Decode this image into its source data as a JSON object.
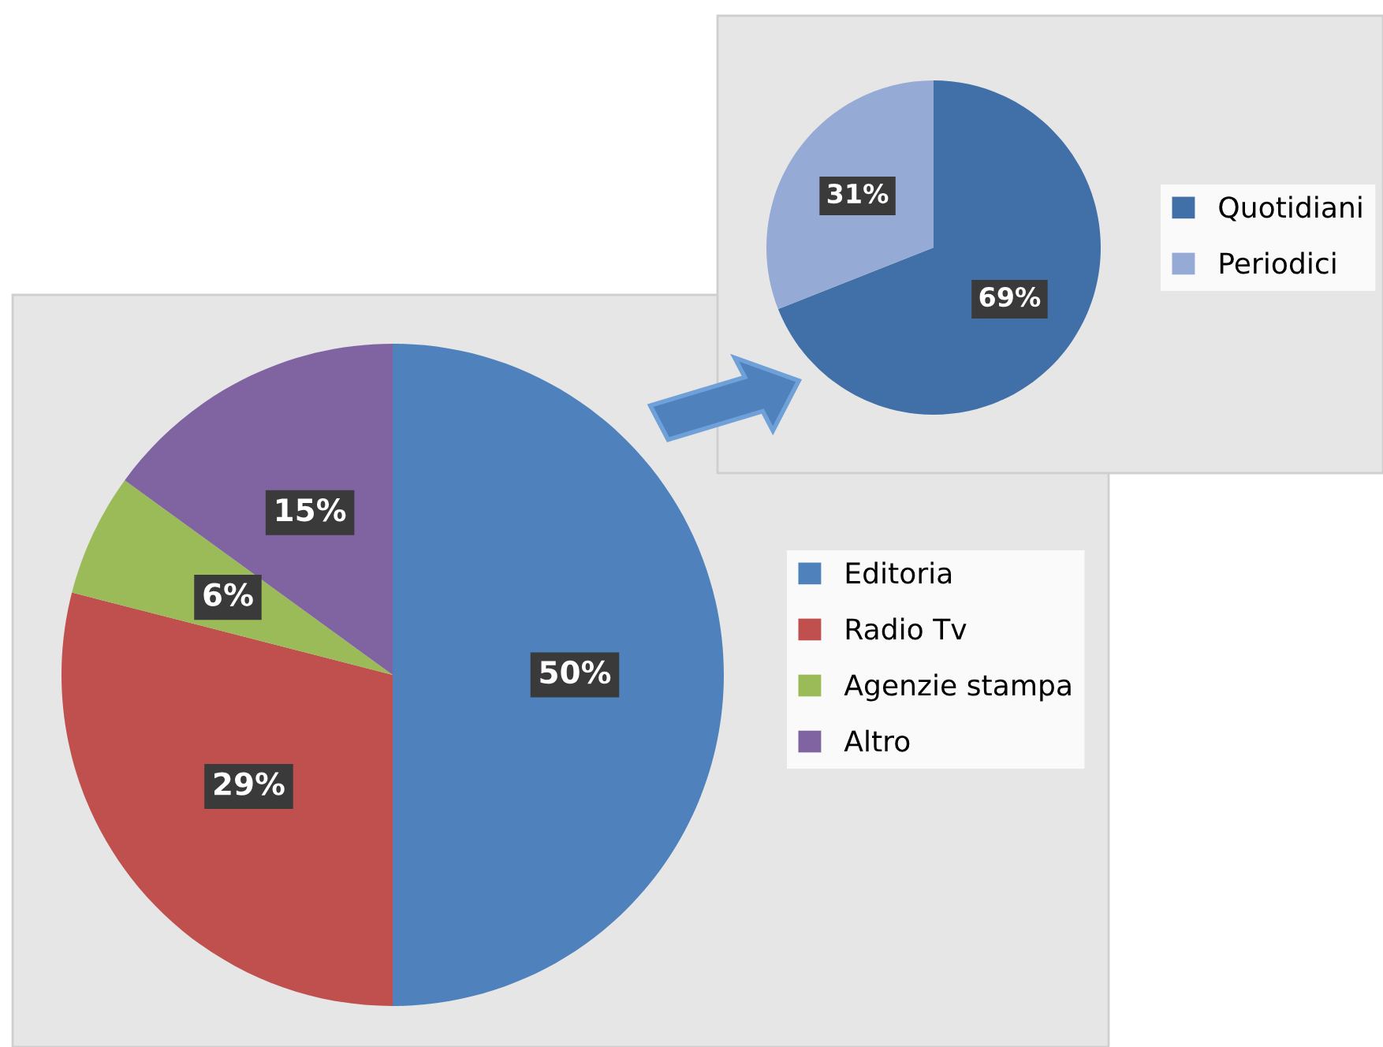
{
  "chart_data": [
    {
      "type": "pie",
      "categories": [
        "Editoria",
        "Radio Tv",
        "Agenzie stampa",
        "Altro"
      ],
      "values": [
        50,
        29,
        6,
        15
      ],
      "colors": [
        "#4f81bd",
        "#c0504d",
        "#9bbb59",
        "#8064a2"
      ],
      "value_labels": [
        "50%",
        "29%",
        "6%",
        "15%"
      ],
      "legend": "right"
    },
    {
      "type": "pie",
      "categories": [
        "Quotidiani",
        "Periodici"
      ],
      "values": [
        69,
        31
      ],
      "colors": [
        "#4170a8",
        "#95aad4"
      ],
      "value_labels": [
        "69%",
        "31%"
      ],
      "legend": "right"
    }
  ]
}
